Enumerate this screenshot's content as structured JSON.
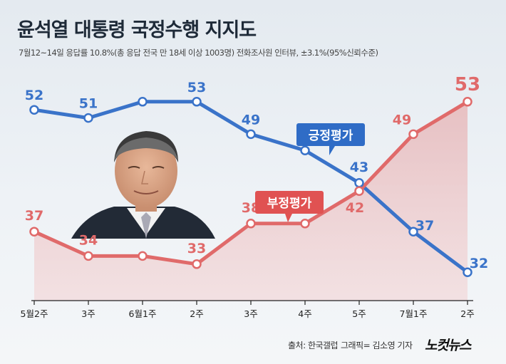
{
  "title": "윤석열 대통령 국정수행 지지도",
  "subtitle": "7월12~14일 응답률 10.8%(총 응답 전국 만 18세 이상 1003명) 전화조사원 인터뷰, ±3.1%(95%신뢰수준)",
  "chart_data": {
    "type": "line",
    "categories": [
      "5월2주",
      "3주",
      "6월1주",
      "2주",
      "3주",
      "4주",
      "5주",
      "7월1주",
      "2주"
    ],
    "series": [
      {
        "name": "긍정평가",
        "color": "#3a73c9",
        "values": [
          52,
          51,
          53,
          53,
          49,
          47,
          43,
          37,
          32
        ],
        "data_labels": [
          "52",
          "51",
          "",
          "53",
          "49",
          "",
          "43",
          "37",
          "32"
        ]
      },
      {
        "name": "부정평가",
        "color": "#e06a6a",
        "values": [
          37,
          34,
          34,
          33,
          38,
          38,
          42,
          49,
          53
        ],
        "data_labels": [
          "37",
          "34",
          "",
          "33",
          "38",
          "",
          "42",
          "49",
          "53"
        ]
      }
    ],
    "ylim": [
      30,
      55
    ],
    "grid": false,
    "legend": "inline-callouts"
  },
  "footer": {
    "source": "출처: 한국갤럽",
    "graphic": "그래픽= 김소영 기자",
    "logo": "노컷뉴스"
  }
}
